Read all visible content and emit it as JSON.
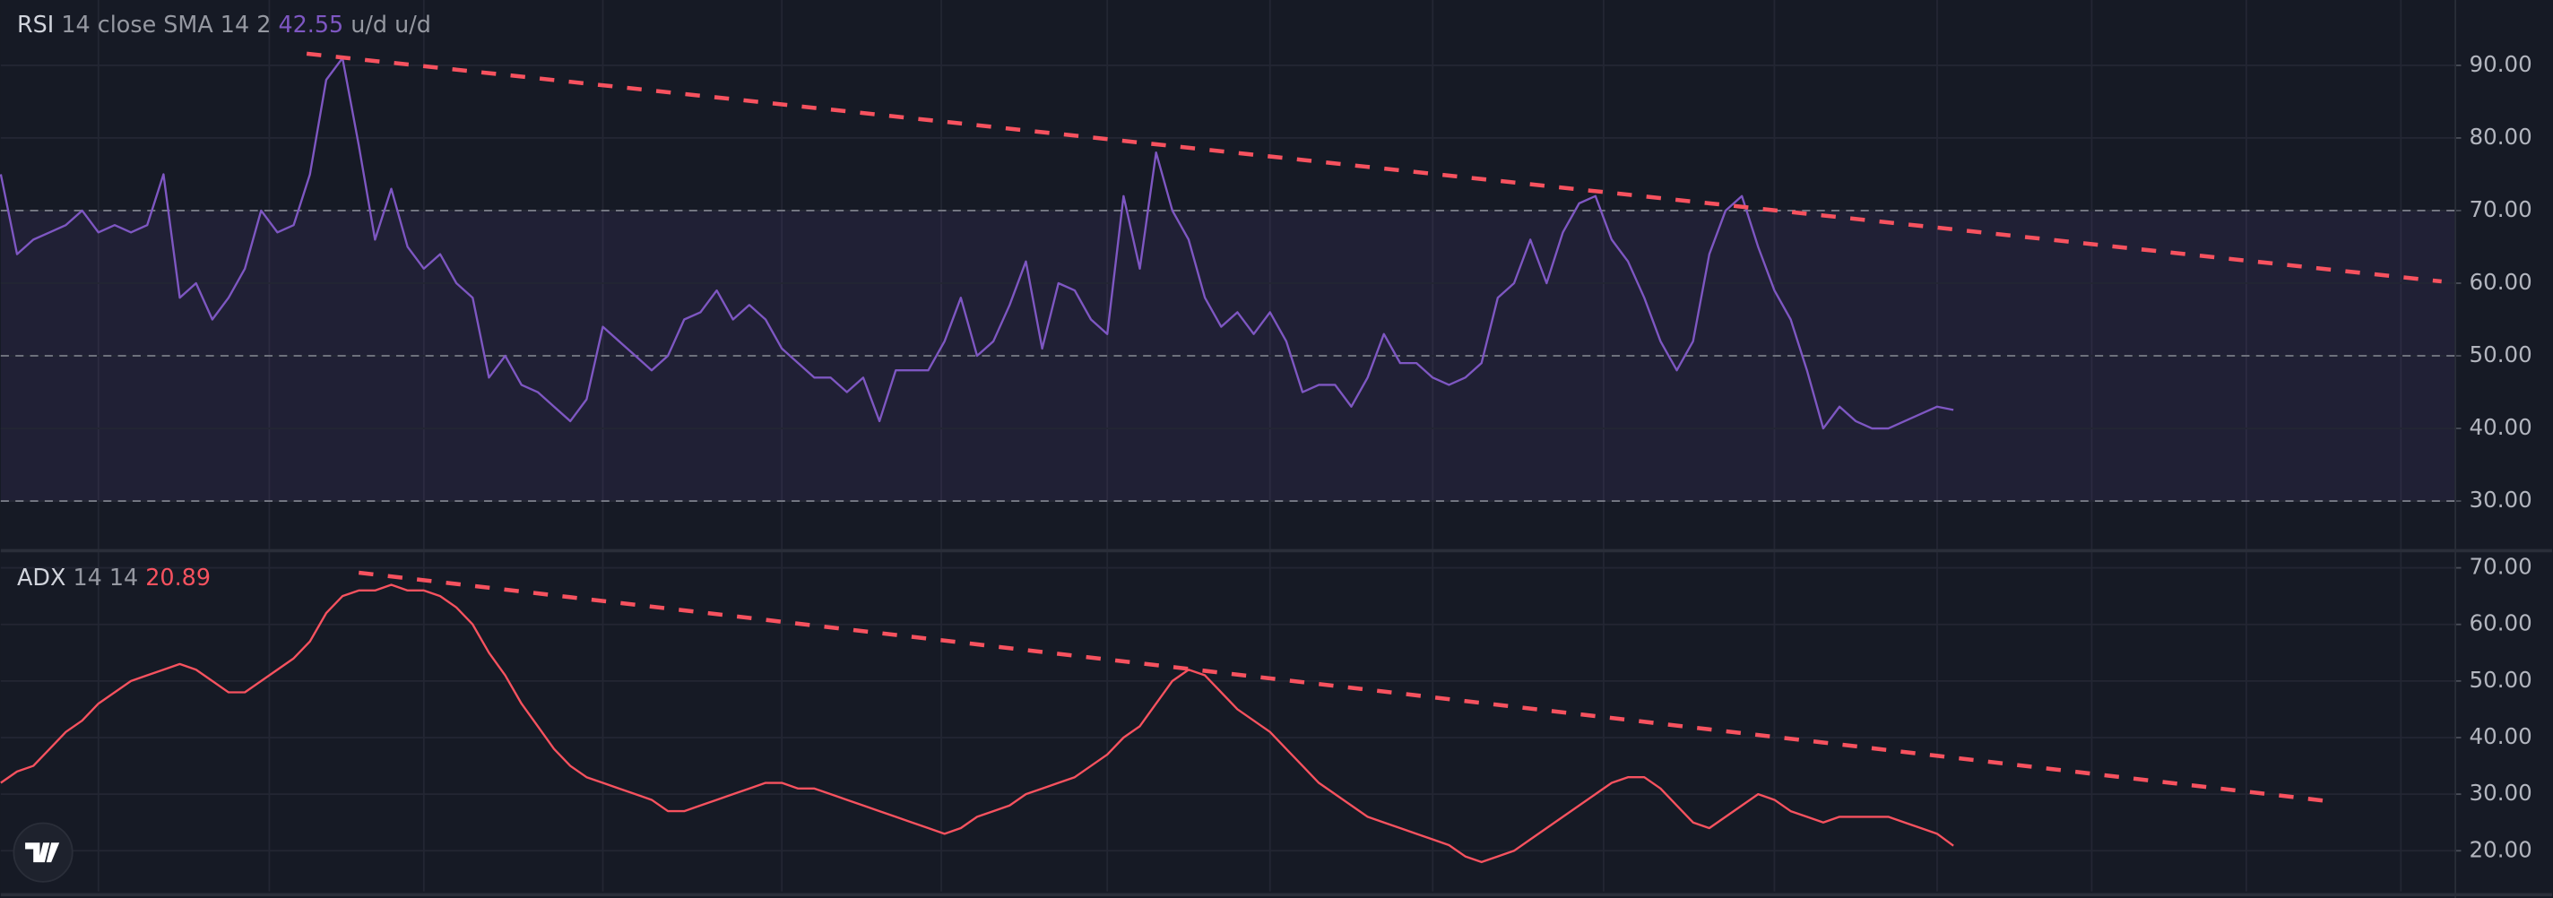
{
  "chart_data": [
    {
      "type": "line",
      "title": "RSI",
      "subtitle": "14 close SMA 14 2",
      "annotation": "u/d u/d",
      "color": "#7e57c2",
      "values": [
        75,
        64,
        66,
        67,
        68,
        70,
        67,
        68,
        67,
        68,
        75,
        58,
        60,
        55,
        58,
        62,
        70,
        67,
        68,
        75,
        88,
        91,
        79,
        66,
        73,
        65,
        62,
        64,
        60,
        58,
        47,
        50,
        46,
        45,
        43,
        41,
        44,
        54,
        52,
        50,
        48,
        50,
        55,
        56,
        59,
        55,
        57,
        55,
        51,
        49,
        47,
        47,
        45,
        47,
        41,
        48,
        48,
        48,
        52,
        58,
        50,
        52,
        57,
        63,
        51,
        60,
        59,
        55,
        53,
        72,
        62,
        78,
        70,
        66,
        58,
        54,
        56,
        53,
        56,
        52,
        45,
        46,
        46,
        43,
        47,
        53,
        49,
        49,
        47,
        46,
        47,
        49,
        58,
        60,
        66,
        60,
        67,
        71,
        72,
        66,
        63,
        58,
        52,
        48,
        52,
        64,
        70,
        72,
        65,
        59,
        55,
        48,
        40,
        43,
        41,
        40,
        40,
        41,
        42,
        43,
        42.55
      ],
      "ylim": [
        23.5,
        99
      ],
      "yticks": [
        {
          "value": 30,
          "label": "30.00"
        },
        {
          "value": 40,
          "label": "40.00"
        },
        {
          "value": 50,
          "label": "50.00"
        },
        {
          "value": 60,
          "label": "60.00"
        },
        {
          "value": 70,
          "label": "70.00"
        },
        {
          "value": 80,
          "label": "80.00"
        },
        {
          "value": 90,
          "label": "90.00"
        }
      ],
      "levels": [
        70,
        50,
        30
      ],
      "grid": true
    },
    {
      "type": "line",
      "title": "ADX",
      "subtitle": "14 14",
      "color": "#f7525f",
      "values": [
        32,
        34,
        35,
        38,
        41,
        43,
        46,
        48,
        50,
        51,
        52,
        53,
        52,
        50,
        48,
        48,
        50,
        52,
        54,
        57,
        62,
        65,
        66,
        66,
        67,
        66,
        66,
        65,
        63,
        60,
        55,
        51,
        46,
        42,
        38,
        35,
        33,
        32,
        31,
        30,
        29,
        27,
        27,
        28,
        29,
        30,
        31,
        32,
        32,
        31,
        31,
        30,
        29,
        28,
        27,
        26,
        25,
        24,
        23,
        24,
        26,
        27,
        28,
        30,
        31,
        32,
        33,
        35,
        37,
        40,
        42,
        46,
        50,
        52,
        51,
        48,
        45,
        43,
        41,
        38,
        35,
        32,
        30,
        28,
        26,
        25,
        24,
        23,
        22,
        21,
        19,
        18,
        19,
        20,
        22,
        24,
        26,
        28,
        30,
        32,
        33,
        33,
        31,
        28,
        25,
        24,
        26,
        28,
        30,
        29,
        27,
        26,
        25,
        26,
        26,
        26,
        26,
        25,
        24,
        23,
        20.89
      ],
      "ylim": [
        12.8,
        72.6
      ],
      "yticks": [
        {
          "value": 20,
          "label": "20.00"
        },
        {
          "value": 30,
          "label": "30.00"
        },
        {
          "value": 40,
          "label": "40.00"
        },
        {
          "value": 50,
          "label": "50.00"
        },
        {
          "value": 60,
          "label": "60.00"
        },
        {
          "value": 70,
          "label": "70.00"
        }
      ],
      "grid": true
    }
  ]
}
